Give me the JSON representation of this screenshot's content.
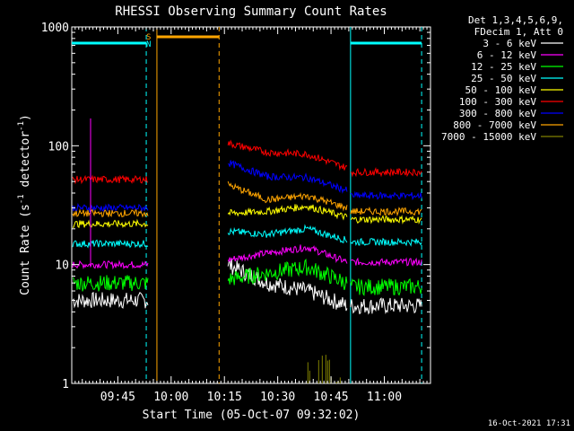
{
  "chart_data": {
    "type": "line",
    "title": "RHESSI Observing Summary Count Rates",
    "xlabel": "Start Time (05-Oct-07 09:32:02)",
    "ylabel": "Count Rate (s^-1 detector^-1)",
    "y_scale": "log",
    "ylim": [
      1,
      1000
    ],
    "xlim": [
      "09:32:02",
      "11:13:00"
    ],
    "x_ticks": [
      "09:45",
      "10:00",
      "10:15",
      "10:30",
      "10:45",
      "11:00"
    ],
    "y_ticks": [
      "1",
      "10",
      "100",
      "1000"
    ],
    "grid": false,
    "legend_position": "top-right, outside plot",
    "legend_header": [
      "Det 1,3,4,5,6,9,",
      "FDecim 1, Att 0"
    ],
    "footer": "16-Oct-2021 17:31",
    "segment_times": {
      "first_end": "09:53:30",
      "second_start": "10:16:00",
      "second_end": "10:49:30",
      "third_start": "10:50:30",
      "third_end": "11:10:30"
    },
    "series": [
      {
        "name": "3 - 6 keV",
        "color": "#ffffff",
        "first": 5,
        "second": [
          10,
          7,
          6,
          4.5
        ],
        "third": 4.5
      },
      {
        "name": "6 - 12 keV",
        "color": "#ff00ff",
        "first": 10,
        "second": [
          11,
          12.5,
          14,
          10.5
        ],
        "third": 10.5
      },
      {
        "name": "12 - 25 keV",
        "color": "#00ff00",
        "first": 7,
        "second": [
          7.5,
          8.5,
          9.5,
          7
        ],
        "third": 6.5
      },
      {
        "name": "25 - 50 keV",
        "color": "#00ffff",
        "first": 15,
        "second": [
          19,
          18,
          20,
          16
        ],
        "third": 15.5
      },
      {
        "name": "50 - 100 keV",
        "color": "#ffff00",
        "first": 22,
        "second": [
          27,
          28,
          31,
          25
        ],
        "third": 24
      },
      {
        "name": "100 - 300 keV",
        "color": "#ff0000",
        "first": 52,
        "second": [
          105,
          88,
          85,
          65
        ],
        "third": 60
      },
      {
        "name": "300 - 800 keV",
        "color": "#0000ff",
        "first": 30,
        "second": [
          72,
          55,
          54,
          42
        ],
        "third": 38
      },
      {
        "name": "800 - 7000 keV",
        "color": "#ffa500",
        "first": 27,
        "second": [
          47,
          35,
          38,
          30
        ],
        "third": 28
      },
      {
        "name": "7000 - 15000 keV",
        "color": "#808000",
        "first": 0,
        "second": [
          0,
          0,
          0,
          0
        ],
        "third": 0,
        "bursts_time_range": [
          "10:38:30",
          "10:48:00"
        ],
        "bursts_max": 2
      }
    ],
    "annotations": [
      {
        "label": "S",
        "color": "#ffa500",
        "at": "09:53:40"
      },
      {
        "label": "N",
        "color": "#00ffff",
        "at": "09:53:40"
      }
    ],
    "cyan_intervals": [
      [
        "09:32:02",
        "09:53:00"
      ],
      [
        "10:50:30",
        "11:10:30"
      ]
    ],
    "orange_interval": [
      "09:56:00",
      "10:13:30"
    ]
  }
}
